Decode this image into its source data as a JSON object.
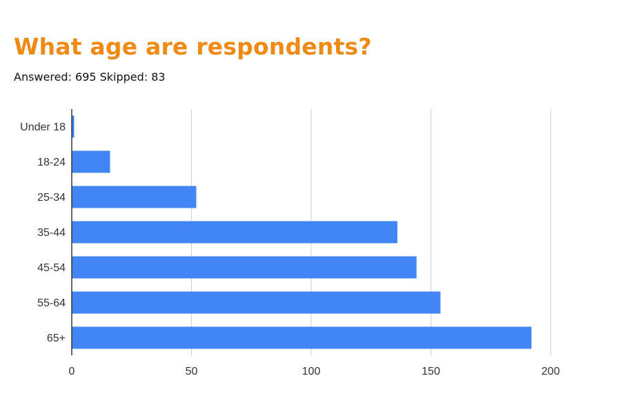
{
  "header": {
    "title": "What age are respondents?",
    "answered_text": "Answered: 695",
    "skipped_text": "Skipped: 83"
  },
  "colors": {
    "title": "#ef8a17",
    "bar": "#4285f4",
    "grid": "#cccccc",
    "axis": "#333333"
  },
  "chart_data": {
    "type": "bar",
    "orientation": "horizontal",
    "title": "",
    "xlabel": "",
    "ylabel": "",
    "categories": [
      "Under 18",
      "18-24",
      "25-34",
      "35-44",
      "45-54",
      "55-64",
      "65+"
    ],
    "values": [
      1,
      16,
      52,
      136,
      144,
      154,
      192
    ],
    "xlim": [
      0,
      200
    ],
    "xticks": [
      0,
      50,
      100,
      150,
      200
    ],
    "grid": true,
    "legend": "none"
  }
}
